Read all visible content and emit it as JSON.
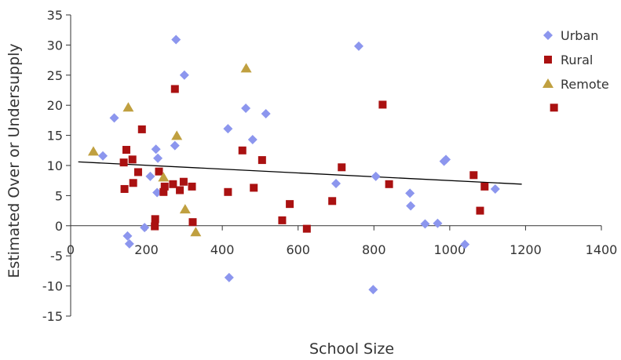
{
  "chart_data": {
    "type": "scatter",
    "title": "",
    "xlabel": "School Size",
    "ylabel": "Estimated Over or Undersupply",
    "xlim": [
      0,
      1400
    ],
    "ylim": [
      -15,
      35
    ],
    "x_ticks": [
      0,
      200,
      400,
      600,
      800,
      1000,
      1200,
      1400
    ],
    "y_ticks": [
      -15,
      -10,
      -5,
      0,
      5,
      10,
      15,
      20,
      25,
      30,
      35
    ],
    "grid": false,
    "legend_position": "top-right",
    "series": [
      {
        "name": "Urban",
        "marker": "diamond",
        "color": "#8c96ee",
        "points": [
          [
            85,
            11.6
          ],
          [
            115,
            17.9
          ],
          [
            150,
            -1.7
          ],
          [
            155,
            -3
          ],
          [
            195,
            -0.3
          ],
          [
            210,
            8.2
          ],
          [
            225,
            12.7
          ],
          [
            228,
            5.5
          ],
          [
            230,
            11.2
          ],
          [
            275,
            13.3
          ],
          [
            278,
            30.9
          ],
          [
            300,
            25
          ],
          [
            415,
            16.1
          ],
          [
            418,
            -8.6
          ],
          [
            462,
            19.5
          ],
          [
            480,
            14.3
          ],
          [
            515,
            18.6
          ],
          [
            700,
            7
          ],
          [
            760,
            29.8
          ],
          [
            798,
            -10.6
          ],
          [
            805,
            8.2
          ],
          [
            895,
            5.4
          ],
          [
            897,
            3.3
          ],
          [
            935,
            0.3
          ],
          [
            968,
            0.4
          ],
          [
            985,
            10.7
          ],
          [
            990,
            11
          ],
          [
            1040,
            -3.1
          ],
          [
            1120,
            6.1
          ]
        ]
      },
      {
        "name": "Rural",
        "marker": "square",
        "color": "#aa1111",
        "points": [
          [
            140,
            10.5
          ],
          [
            142,
            6.1
          ],
          [
            147,
            12.6
          ],
          [
            163,
            11
          ],
          [
            165,
            7.1
          ],
          [
            178,
            8.9
          ],
          [
            188,
            16
          ],
          [
            222,
            -0.1
          ],
          [
            223,
            1.1
          ],
          [
            233,
            9
          ],
          [
            245,
            5.6
          ],
          [
            248,
            6.5
          ],
          [
            270,
            6.9
          ],
          [
            275,
            22.7
          ],
          [
            288,
            5.9
          ],
          [
            298,
            7.3
          ],
          [
            320,
            6.5
          ],
          [
            322,
            0.6
          ],
          [
            415,
            5.6
          ],
          [
            453,
            12.5
          ],
          [
            483,
            6.3
          ],
          [
            505,
            10.9
          ],
          [
            558,
            0.9
          ],
          [
            578,
            3.6
          ],
          [
            623,
            -0.5
          ],
          [
            690,
            4.1
          ],
          [
            715,
            9.7
          ],
          [
            823,
            20.1
          ],
          [
            840,
            6.9
          ],
          [
            1063,
            8.4
          ],
          [
            1080,
            2.5
          ],
          [
            1092,
            6.5
          ],
          [
            1275,
            19.6
          ]
        ]
      },
      {
        "name": "Remote",
        "marker": "triangle",
        "color": "#c0a040",
        "points": [
          [
            60,
            12.3
          ],
          [
            152,
            19.6
          ],
          [
            245,
            8
          ],
          [
            280,
            14.9
          ],
          [
            302,
            2.7
          ],
          [
            330,
            -1.1
          ],
          [
            463,
            26.1
          ]
        ]
      }
    ],
    "trendline": {
      "x": [
        20,
        1190
      ],
      "y": [
        10.6,
        6.9
      ],
      "color": "#000000"
    }
  }
}
